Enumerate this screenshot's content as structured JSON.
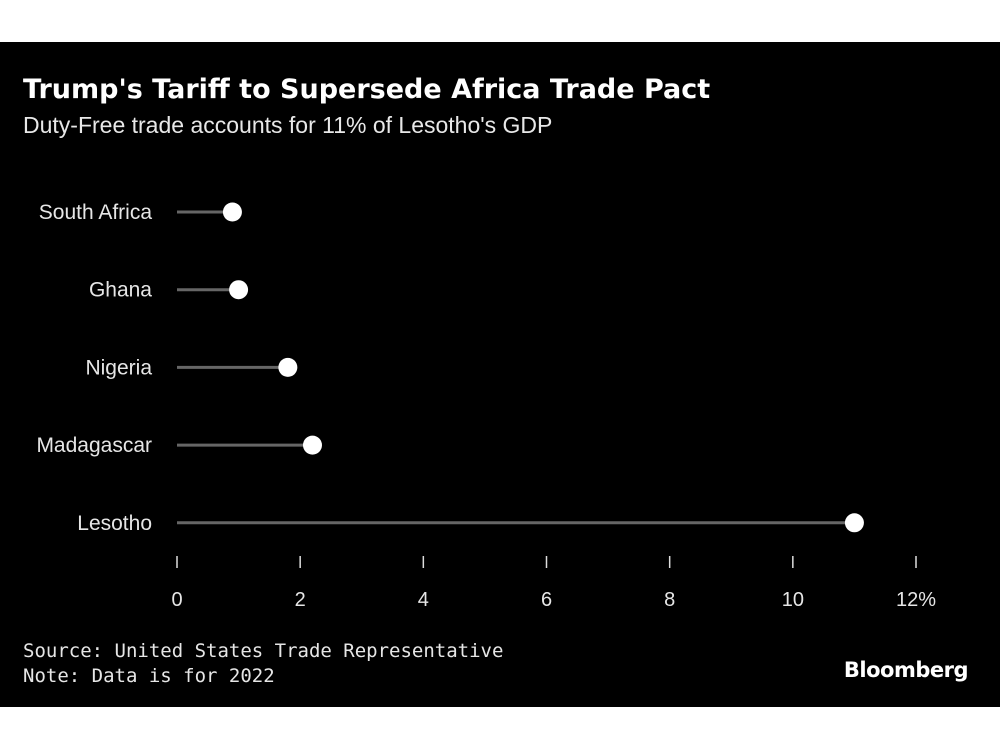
{
  "title": "Trump's Tariff to Supersede Africa Trade Pact",
  "subtitle": "Duty-Free trade accounts for 11% of Lesotho's GDP",
  "footer": {
    "source": "Source: United States Trade Representative",
    "note": "Note: Data is for 2022"
  },
  "brand": "Bloomberg",
  "chart_data": {
    "type": "lollipop",
    "categories": [
      "South Africa",
      "Ghana",
      "Nigeria",
      "Madagascar",
      "Lesotho"
    ],
    "values": [
      0.9,
      1.0,
      1.8,
      2.2,
      11.0
    ],
    "xlim": [
      0,
      12
    ],
    "xticks": [
      "0",
      "2",
      "4",
      "6",
      "8",
      "10",
      "12%"
    ],
    "xlabel": "",
    "ylabel": "",
    "grid": false,
    "colors": {
      "background": "#000000",
      "stem": "#666666",
      "dot": "#ffffff",
      "text": "#e6e6e6"
    }
  }
}
